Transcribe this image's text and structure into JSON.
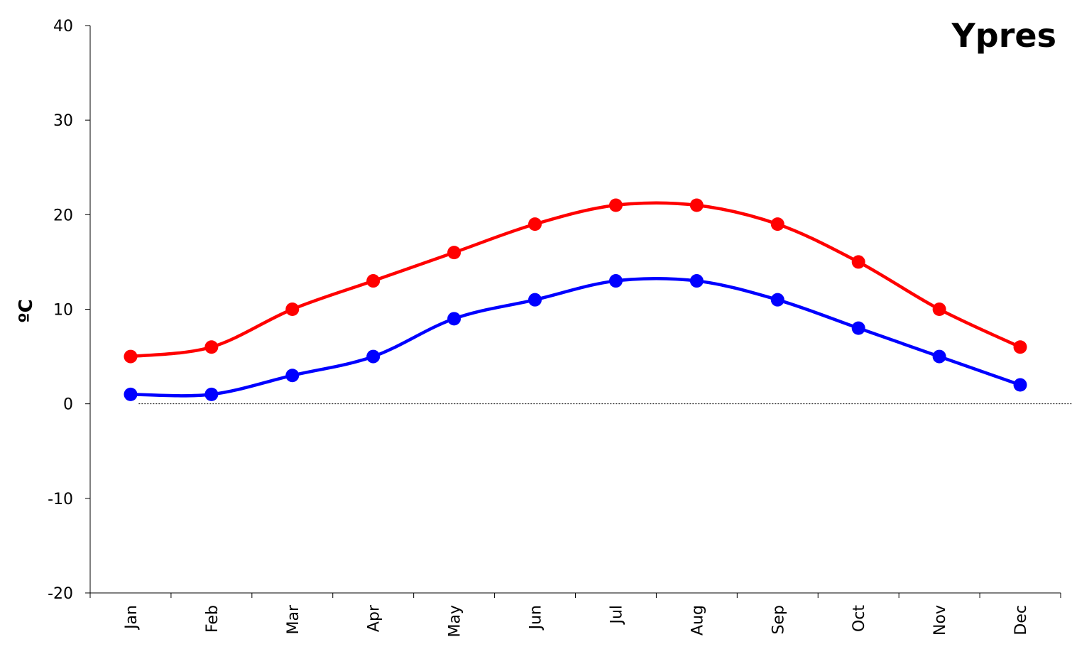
{
  "chart_data": {
    "type": "line",
    "title": "Ypres",
    "xlabel": "",
    "ylabel": "ºC",
    "categories": [
      "Jan",
      "Feb",
      "Mar",
      "Apr",
      "May",
      "Jun",
      "Jul",
      "Aug",
      "Sep",
      "Oct",
      "Nov",
      "Dec"
    ],
    "series": [
      {
        "color": "#ff0000",
        "values": [
          5,
          6,
          10,
          13,
          16,
          19,
          21,
          21,
          19,
          15,
          10,
          6
        ]
      },
      {
        "color": "#0000ff",
        "values": [
          1,
          1,
          3,
          5,
          9,
          11,
          13,
          13,
          11,
          8,
          5,
          2
        ]
      }
    ],
    "ylim": [
      -20,
      40
    ],
    "yticks": [
      -20,
      -10,
      0,
      10,
      20,
      30,
      40
    ],
    "grid": false,
    "legend": "none",
    "zero_line": true,
    "smooth": true,
    "marker": "circle"
  }
}
